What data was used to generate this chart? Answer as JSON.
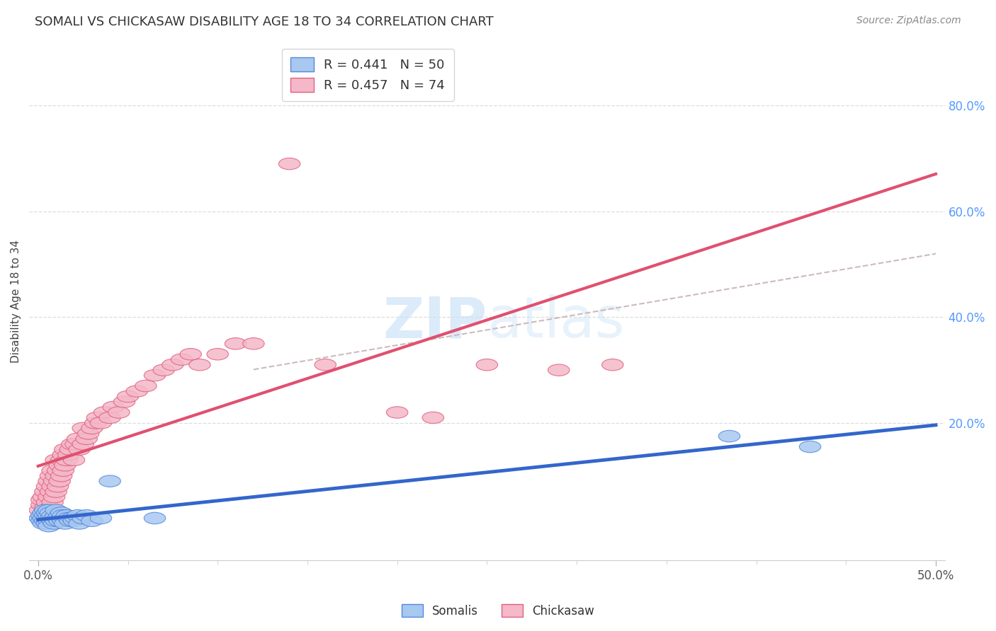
{
  "title": "SOMALI VS CHICKASAW DISABILITY AGE 18 TO 34 CORRELATION CHART",
  "source": "Source: ZipAtlas.com",
  "ylabel": "Disability Age 18 to 34",
  "somali_color": "#a8c8f0",
  "somali_edge_color": "#5588dd",
  "chickasaw_color": "#f4b8c8",
  "chickasaw_edge_color": "#e06080",
  "somali_line_color": "#3366cc",
  "chickasaw_line_color": "#e05070",
  "dashed_line_color": "#ccaaaa",
  "grid_color": "#dddddd",
  "right_tick_color": "#5599ff",
  "watermark_color": "#cce0f5",
  "xlim": [
    0.0,
    0.5
  ],
  "ylim": [
    -0.06,
    0.92
  ],
  "ytick_vals": [
    0.2,
    0.4,
    0.6,
    0.8
  ],
  "ytick_labels": [
    "20.0%",
    "40.0%",
    "60.0%",
    "80.0%"
  ],
  "somali_x": [
    0.001,
    0.002,
    0.002,
    0.003,
    0.003,
    0.003,
    0.004,
    0.004,
    0.004,
    0.005,
    0.005,
    0.005,
    0.006,
    0.006,
    0.006,
    0.006,
    0.007,
    0.007,
    0.008,
    0.008,
    0.009,
    0.009,
    0.01,
    0.01,
    0.01,
    0.011,
    0.012,
    0.012,
    0.013,
    0.013,
    0.014,
    0.014,
    0.015,
    0.015,
    0.016,
    0.017,
    0.018,
    0.019,
    0.02,
    0.021,
    0.022,
    0.023,
    0.025,
    0.027,
    0.03,
    0.035,
    0.04,
    0.065,
    0.385,
    0.43
  ],
  "somali_y": [
    0.02,
    0.015,
    0.025,
    0.01,
    0.02,
    0.03,
    0.015,
    0.025,
    0.035,
    0.01,
    0.02,
    0.03,
    0.015,
    0.025,
    0.035,
    0.005,
    0.02,
    0.03,
    0.015,
    0.025,
    0.01,
    0.02,
    0.015,
    0.025,
    0.035,
    0.02,
    0.015,
    0.025,
    0.02,
    0.03,
    0.015,
    0.025,
    0.02,
    0.01,
    0.025,
    0.02,
    0.015,
    0.02,
    0.015,
    0.02,
    0.025,
    0.01,
    0.02,
    0.025,
    0.015,
    0.02,
    0.09,
    0.02,
    0.175,
    0.155
  ],
  "chickasaw_x": [
    0.001,
    0.002,
    0.002,
    0.003,
    0.003,
    0.004,
    0.004,
    0.004,
    0.005,
    0.005,
    0.006,
    0.006,
    0.006,
    0.007,
    0.007,
    0.007,
    0.008,
    0.008,
    0.008,
    0.009,
    0.009,
    0.01,
    0.01,
    0.01,
    0.011,
    0.011,
    0.012,
    0.012,
    0.013,
    0.013,
    0.014,
    0.014,
    0.015,
    0.015,
    0.016,
    0.017,
    0.018,
    0.019,
    0.02,
    0.021,
    0.022,
    0.023,
    0.025,
    0.025,
    0.027,
    0.028,
    0.03,
    0.032,
    0.033,
    0.035,
    0.037,
    0.04,
    0.042,
    0.045,
    0.048,
    0.05,
    0.055,
    0.06,
    0.065,
    0.07,
    0.075,
    0.08,
    0.085,
    0.09,
    0.1,
    0.11,
    0.12,
    0.14,
    0.16,
    0.2,
    0.22,
    0.25,
    0.29,
    0.32
  ],
  "chickasaw_y": [
    0.035,
    0.045,
    0.055,
    0.025,
    0.06,
    0.04,
    0.07,
    0.02,
    0.05,
    0.08,
    0.03,
    0.06,
    0.09,
    0.04,
    0.07,
    0.1,
    0.05,
    0.08,
    0.11,
    0.06,
    0.09,
    0.07,
    0.1,
    0.13,
    0.08,
    0.11,
    0.09,
    0.12,
    0.1,
    0.13,
    0.11,
    0.14,
    0.12,
    0.15,
    0.13,
    0.14,
    0.15,
    0.16,
    0.13,
    0.16,
    0.17,
    0.15,
    0.16,
    0.19,
    0.17,
    0.18,
    0.19,
    0.2,
    0.21,
    0.2,
    0.22,
    0.21,
    0.23,
    0.22,
    0.24,
    0.25,
    0.26,
    0.27,
    0.29,
    0.3,
    0.31,
    0.32,
    0.33,
    0.31,
    0.33,
    0.35,
    0.35,
    0.69,
    0.31,
    0.22,
    0.21,
    0.31,
    0.3,
    0.31
  ]
}
